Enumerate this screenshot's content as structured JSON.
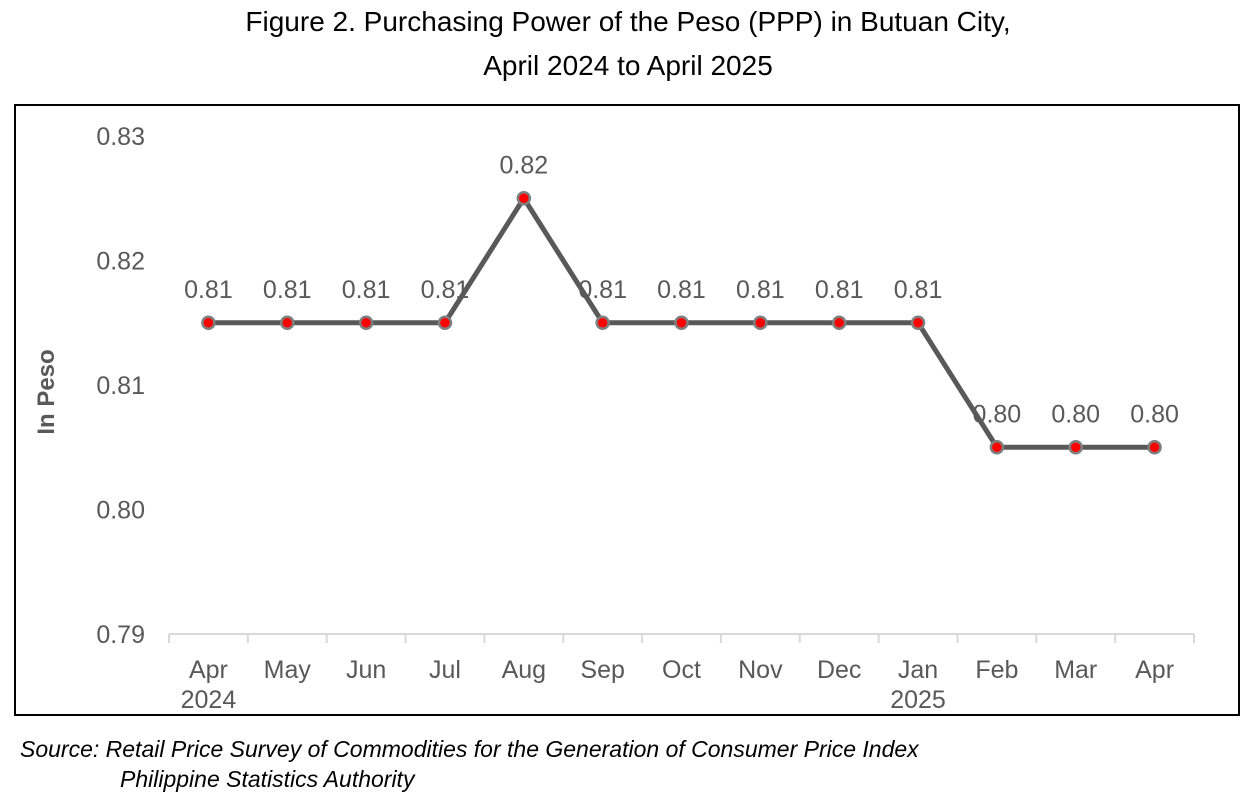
{
  "title_line1": "Figure 2. Purchasing Power of the Peso (PPP) in Butuan City,",
  "title_line2": "April 2024 to April 2025",
  "source_label": "Source:",
  "source_line1": "Retail Price Survey of Commodities for the Generation of Consumer Price Index",
  "source_line2": "Philippine Statistics Authority",
  "colors": {
    "line": "#595959",
    "marker_fill": "#ff0000",
    "marker_edge": "#7f7f7f",
    "axis": "#d9d9d9",
    "tick_text": "#595959"
  },
  "chart_data": {
    "type": "line",
    "title": "Figure 2. Purchasing Power of the Peso (PPP) in Butuan City, April 2024 to April 2025",
    "ylabel": "In Peso",
    "xlabel": "",
    "ylim": [
      0.79,
      0.83
    ],
    "yticks": [
      "0.79",
      "0.80",
      "0.81",
      "0.82",
      "0.83"
    ],
    "grid": false,
    "categories": [
      "Apr",
      "May",
      "Jun",
      "Jul",
      "Aug",
      "Sep",
      "Oct",
      "Nov",
      "Dec",
      "Jan",
      "Feb",
      "Mar",
      "Apr"
    ],
    "year_labels": {
      "0": "2024",
      "9": "2025"
    },
    "series": [
      {
        "values": [
          0.815,
          0.815,
          0.815,
          0.815,
          0.825,
          0.815,
          0.815,
          0.815,
          0.815,
          0.815,
          0.805,
          0.805,
          0.805
        ],
        "labels": [
          "0.81",
          "0.81",
          "0.81",
          "0.81",
          "0.82",
          "0.81",
          "0.81",
          "0.81",
          "0.81",
          "0.81",
          "0.80",
          "0.80",
          "0.80"
        ]
      }
    ]
  }
}
